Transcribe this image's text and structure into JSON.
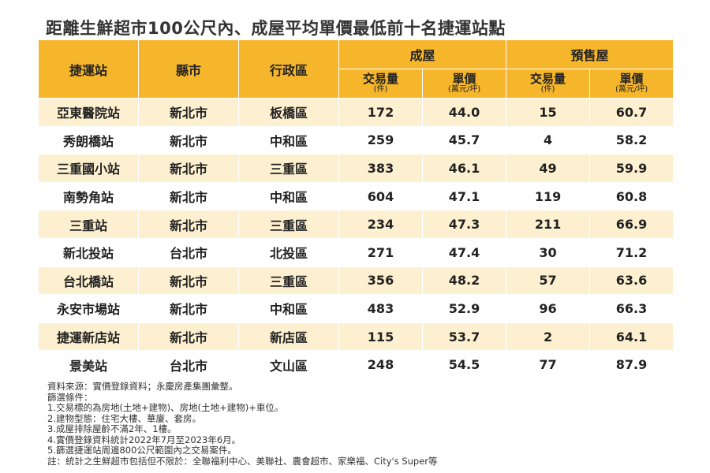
{
  "title": "距離生鮮超市100公尺內、成屋平均單價最低前十名捷運站點",
  "header": {
    "station": "捷運站",
    "city": "縣市",
    "district": "行政區",
    "existing": "成屋",
    "presale": "預售屋",
    "volume": "交易量",
    "volume_unit": "(件)",
    "price": "單價",
    "price_unit": "(萬元/坪)"
  },
  "rows": [
    {
      "station": "亞東醫院站",
      "city": "新北市",
      "district": "板橋區",
      "ex_vol": "172",
      "ex_price": "44.0",
      "pre_vol": "15",
      "pre_price": "60.7"
    },
    {
      "station": "秀朗橋站",
      "city": "新北市",
      "district": "中和區",
      "ex_vol": "259",
      "ex_price": "45.7",
      "pre_vol": "4",
      "pre_price": "58.2"
    },
    {
      "station": "三重國小站",
      "city": "新北市",
      "district": "三重區",
      "ex_vol": "383",
      "ex_price": "46.1",
      "pre_vol": "49",
      "pre_price": "59.9"
    },
    {
      "station": "南勢角站",
      "city": "新北市",
      "district": "中和區",
      "ex_vol": "604",
      "ex_price": "47.1",
      "pre_vol": "119",
      "pre_price": "60.8"
    },
    {
      "station": "三重站",
      "city": "新北市",
      "district": "三重區",
      "ex_vol": "234",
      "ex_price": "47.3",
      "pre_vol": "211",
      "pre_price": "66.9"
    },
    {
      "station": "新北投站",
      "city": "台北市",
      "district": "北投區",
      "ex_vol": "271",
      "ex_price": "47.4",
      "pre_vol": "30",
      "pre_price": "71.2"
    },
    {
      "station": "台北橋站",
      "city": "新北市",
      "district": "三重區",
      "ex_vol": "356",
      "ex_price": "48.2",
      "pre_vol": "57",
      "pre_price": "63.6"
    },
    {
      "station": "永安市場站",
      "city": "新北市",
      "district": "中和區",
      "ex_vol": "483",
      "ex_price": "52.9",
      "pre_vol": "96",
      "pre_price": "66.3"
    },
    {
      "station": "捷運新店站",
      "city": "新北市",
      "district": "新店區",
      "ex_vol": "115",
      "ex_price": "53.7",
      "pre_vol": "2",
      "pre_price": "64.1"
    },
    {
      "station": "景美站",
      "city": "台北市",
      "district": "文山區",
      "ex_vol": "248",
      "ex_price": "54.5",
      "pre_vol": "77",
      "pre_price": "87.9"
    }
  ],
  "notes": [
    "資料來源：實價登錄資料；永慶房產集團彙整。",
    "篩選條件：",
    "1.交易標的為房地(土地+建物)、房地(土地+建物)+車位。",
    "2.建物型態：住宅大樓、華廈、套房。",
    "3.成屋排除屋齡不滿2年、1樓。",
    "4.實價登錄資料統計2022年7月至2023年6月。",
    "5.篩選捷運站周邊800公尺範圍內之交易案件。",
    "註：統計之生鮮超市包括但不限於：全聯福利中心、美聯社、農會超市、家樂福、City's Super等"
  ]
}
